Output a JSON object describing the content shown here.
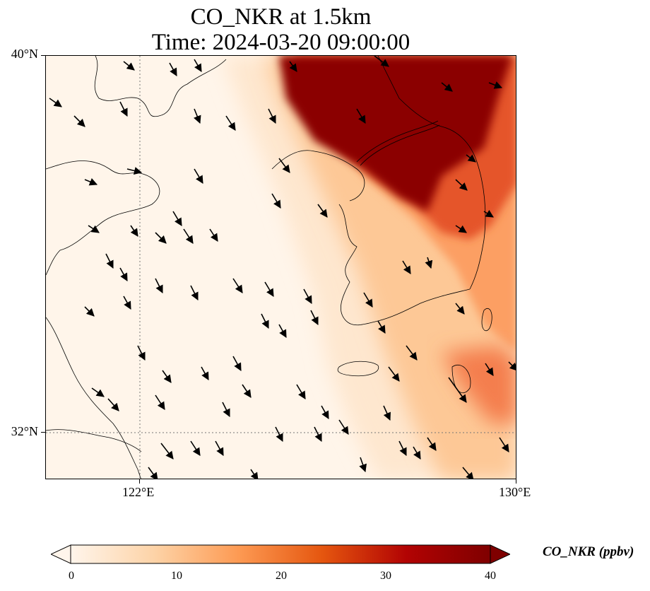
{
  "title_line1": "CO_NKR at 1.5km",
  "title_line2": "Time: 2024-03-20 09:00:00",
  "lat_labels": [
    "40°N",
    "32°N"
  ],
  "lon_labels": [
    "122°E",
    "130°E"
  ],
  "colorbar": {
    "label": "CO_NKR (ppbv)",
    "ticks": [
      "0",
      "10",
      "20",
      "30",
      "40"
    ],
    "colors": [
      "#fff5eb",
      "#fdd3a7",
      "#fd9a53",
      "#e5560f",
      "#b20303",
      "#7f0000"
    ]
  },
  "chart_data": {
    "type": "heatmap",
    "variable": "CO_NKR",
    "units": "ppbv",
    "level": "1.5km",
    "time": "2024-03-20 09:00:00",
    "lon_range": [
      120,
      130
    ],
    "lat_range": [
      31,
      40
    ],
    "color_range": [
      0,
      40
    ],
    "gridlines": {
      "lon": [
        122,
        130
      ],
      "lat": [
        32,
        40
      ]
    },
    "wind_vectors": "southeastward arrows across the domain"
  }
}
